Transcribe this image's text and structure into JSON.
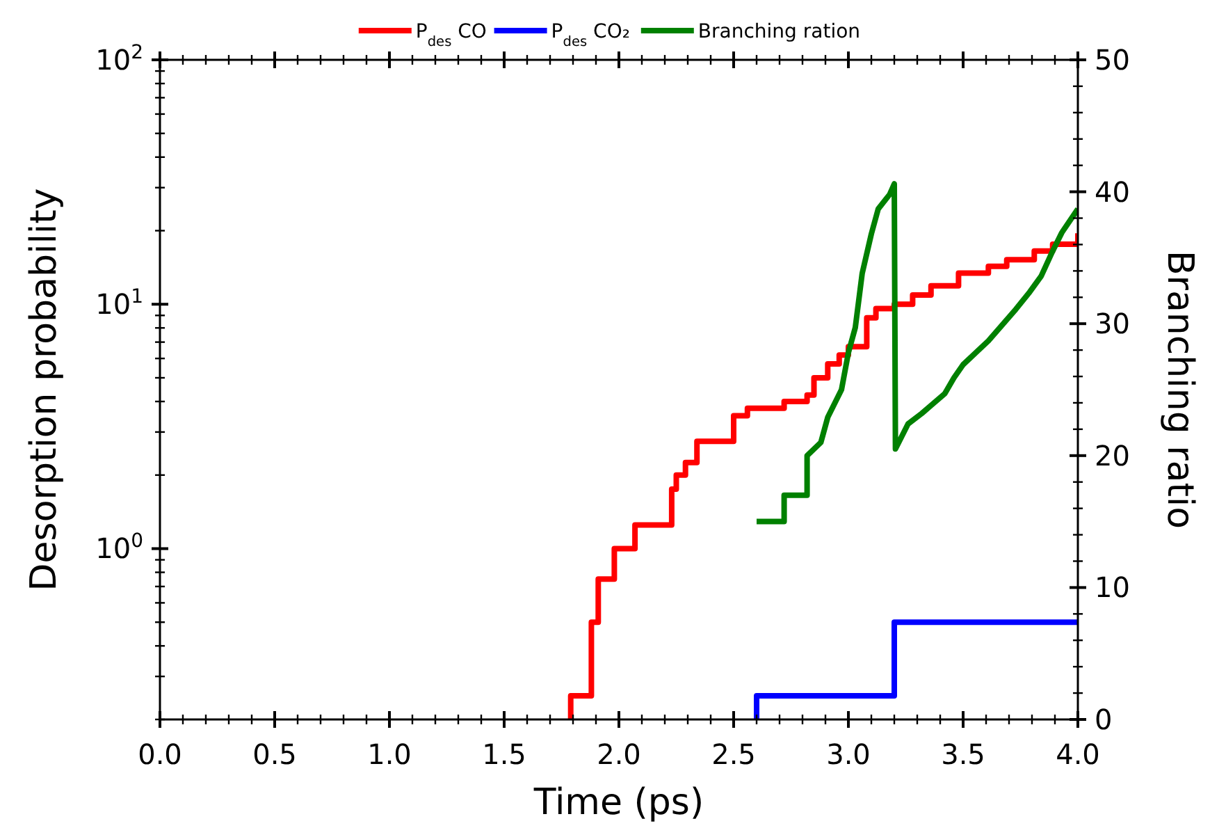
{
  "chart_data": {
    "type": "step",
    "xlabel": "Time (ps)",
    "ylabel": "Desorption probability",
    "y2label": "Branching ratio",
    "log": "y",
    "legend": "top",
    "grid": false,
    "xlim": [
      0,
      4
    ],
    "xticks": [
      {
        "value": 0,
        "label": "0.0"
      },
      {
        "value": 0.1,
        "label": null
      },
      {
        "value": 0.2,
        "label": null
      },
      {
        "value": 0.3,
        "label": null
      },
      {
        "value": 0.4,
        "label": null
      },
      {
        "value": 0.5,
        "label": "0.5"
      },
      {
        "value": 0.6,
        "label": null
      },
      {
        "value": 0.7,
        "label": null
      },
      {
        "value": 0.8,
        "label": null
      },
      {
        "value": 0.9,
        "label": null
      },
      {
        "value": 1,
        "label": "1.0"
      },
      {
        "value": 1.1,
        "label": null
      },
      {
        "value": 1.2,
        "label": null
      },
      {
        "value": 1.3,
        "label": null
      },
      {
        "value": 1.4,
        "label": null
      },
      {
        "value": 1.5,
        "label": "1.5"
      },
      {
        "value": 1.6,
        "label": null
      },
      {
        "value": 1.7,
        "label": null
      },
      {
        "value": 1.8,
        "label": null
      },
      {
        "value": 1.9,
        "label": null
      },
      {
        "value": 2,
        "label": "2.0"
      },
      {
        "value": 2.1,
        "label": null
      },
      {
        "value": 2.2,
        "label": null
      },
      {
        "value": 2.3,
        "label": null
      },
      {
        "value": 2.4,
        "label": null
      },
      {
        "value": 2.5,
        "label": "2.5"
      },
      {
        "value": 2.6,
        "label": null
      },
      {
        "value": 2.7,
        "label": null
      },
      {
        "value": 2.8,
        "label": null
      },
      {
        "value": 2.9,
        "label": null
      },
      {
        "value": 3,
        "label": "3.0"
      },
      {
        "value": 3.1,
        "label": null
      },
      {
        "value": 3.2,
        "label": null
      },
      {
        "value": 3.3,
        "label": null
      },
      {
        "value": 3.4,
        "label": null
      },
      {
        "value": 3.5,
        "label": "3.5"
      },
      {
        "value": 3.6,
        "label": null
      },
      {
        "value": 3.7,
        "label": null
      },
      {
        "value": 3.8,
        "label": null
      },
      {
        "value": 3.9,
        "label": null
      },
      {
        "value": 4,
        "label": "4.0"
      }
    ],
    "ylim": [
      0.2,
      100
    ],
    "yticks": [
      {
        "value": 0.2,
        "label": null
      },
      {
        "value": 0.3,
        "label": null
      },
      {
        "value": 0.4,
        "label": null
      },
      {
        "value": 0.5,
        "label": null
      },
      {
        "value": 0.6,
        "label": null
      },
      {
        "value": 0.7,
        "label": null
      },
      {
        "value": 0.8,
        "label": null
      },
      {
        "value": 0.9,
        "label": null
      },
      {
        "value": 1,
        "label": "10$^{0}$"
      },
      {
        "value": 2,
        "label": null
      },
      {
        "value": 3,
        "label": null
      },
      {
        "value": 4,
        "label": null
      },
      {
        "value": 5,
        "label": null
      },
      {
        "value": 6,
        "label": null
      },
      {
        "value": 7,
        "label": null
      },
      {
        "value": 8,
        "label": null
      },
      {
        "value": 9,
        "label": null
      },
      {
        "value": 10,
        "label": "10$^{1}$"
      },
      {
        "value": 20,
        "label": null
      },
      {
        "value": 30,
        "label": null
      },
      {
        "value": 40,
        "label": null
      },
      {
        "value": 50,
        "label": null
      },
      {
        "value": 60,
        "label": null
      },
      {
        "value": 70,
        "label": null
      },
      {
        "value": 80,
        "label": null
      },
      {
        "value": 90,
        "label": null
      },
      {
        "value": 100,
        "label": "10$^{2}$"
      }
    ],
    "y2lim": [
      0,
      50
    ],
    "y2ticks": [
      0,
      {
        "value": 2,
        "label": null
      },
      {
        "value": 4,
        "label": null
      },
      {
        "value": 6,
        "label": null
      },
      {
        "value": 8,
        "label": null
      },
      10,
      {
        "value": 12,
        "label": null
      },
      {
        "value": 14,
        "label": null
      },
      {
        "value": 16,
        "label": null
      },
      {
        "value": 18,
        "label": null
      },
      20,
      {
        "value": 22,
        "label": null
      },
      {
        "value": 24,
        "label": null
      },
      {
        "value": 26,
        "label": null
      },
      {
        "value": 28,
        "label": null
      },
      30,
      {
        "value": 32,
        "label": null
      },
      {
        "value": 34,
        "label": null
      },
      {
        "value": 36,
        "label": null
      },
      {
        "value": 38,
        "label": null
      },
      40,
      {
        "value": 42,
        "label": null
      },
      {
        "value": 44,
        "label": null
      },
      {
        "value": 46,
        "label": null
      },
      {
        "value": 48,
        "label": null
      },
      50
    ],
    "series": [
      {
        "name": "P$_{des}$ CO",
        "color": "#ff0000",
        "x": [
          1.79,
          1.79,
          1.88,
          1.91,
          1.98,
          2.07,
          2.23,
          2.25,
          2.29,
          2.34,
          2.5,
          2.56,
          2.72,
          2.82,
          2.85,
          2.91,
          2.96,
          3.0,
          3.08,
          3.12,
          3.2,
          3.28,
          3.36,
          3.48,
          3.61,
          3.69,
          3.81,
          3.89,
          4.0
        ],
        "values": [
          0.2,
          0.25,
          0.5,
          0.75,
          1.0,
          1.25,
          1.75,
          2.0,
          2.25,
          2.75,
          3.5,
          3.75,
          4.0,
          4.25,
          5.0,
          5.7,
          6.2,
          6.7,
          8.8,
          9.6,
          10,
          10.9,
          11.9,
          13.4,
          14.3,
          15.2,
          16.5,
          17.6,
          19.5
        ]
      },
      {
        "name": "P$_{des}$ CO₂",
        "color": "#0000ff",
        "x": [
          2.6,
          2.6,
          3.2,
          4.0
        ],
        "values": [
          0.2,
          0.25,
          0.5,
          0.5
        ]
      },
      {
        "name": "Branching ration",
        "color": "#008000",
        "type": "line",
        "axis": "y2",
        "x": [
          2.6,
          2.72,
          2.72,
          2.82,
          2.82,
          2.88,
          2.91,
          2.97,
          3.0,
          3.03,
          3.06,
          3.1,
          3.13,
          3.18,
          3.2,
          3.205,
          3.26,
          3.32,
          3.36,
          3.42,
          3.46,
          3.5,
          3.61,
          3.67,
          3.73,
          3.79,
          3.84,
          3.89,
          3.93,
          4.0
        ],
        "values": [
          15.0,
          15.0,
          17.0,
          17.0,
          20.0,
          21.0,
          22.9,
          25.0,
          27.8,
          29.7,
          33.8,
          36.8,
          38.7,
          39.8,
          40.6,
          20.5,
          22.4,
          23.2,
          23.8,
          24.7,
          25.9,
          26.9,
          28.7,
          29.9,
          31.1,
          32.4,
          33.6,
          35.5,
          36.9,
          38.7
        ]
      }
    ]
  }
}
